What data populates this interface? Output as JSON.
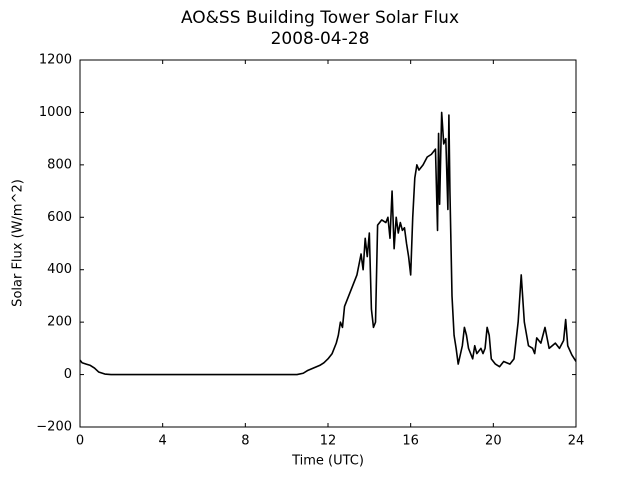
{
  "chart_data": {
    "type": "line",
    "title": "AO&SS Building Tower Solar Flux",
    "subtitle": "2008-04-28",
    "x_label": "Time (UTC)",
    "y_label": "Solar Flux (W/m^2)",
    "xlim": [
      0,
      24
    ],
    "xticks": [
      0,
      4,
      8,
      12,
      16,
      20,
      24
    ],
    "ylim": [
      -200,
      1200
    ],
    "yticks": [
      {
        "value": -200,
        "label": "−200"
      },
      0,
      200,
      400,
      600,
      800,
      1000,
      1200
    ],
    "grid": false,
    "series": [
      {
        "color": "#000000",
        "x": [
          0,
          0.1,
          0.3,
          0.5,
          0.7,
          0.9,
          1.2,
          1.5,
          10.5,
          10.8,
          11,
          11.3,
          11.6,
          11.8,
          12,
          12.2,
          12.4,
          12.5,
          12.6,
          12.7,
          12.8,
          13,
          13.2,
          13.4,
          13.5,
          13.6,
          13.7,
          13.8,
          13.9,
          14.0,
          14.1,
          14.2,
          14.3,
          14.4,
          14.6,
          14.8,
          14.9,
          15.0,
          15.1,
          15.2,
          15.3,
          15.4,
          15.5,
          15.6,
          15.7,
          15.8,
          15.9,
          16.0,
          16.1,
          16.2,
          16.3,
          16.4,
          16.6,
          16.8,
          17.0,
          17.2,
          17.3,
          17.35,
          17.4,
          17.5,
          17.6,
          17.7,
          17.8,
          17.85,
          17.9,
          18.0,
          18.1,
          18.2,
          18.3,
          18.5,
          18.6,
          18.7,
          18.8,
          19.0,
          19.1,
          19.2,
          19.4,
          19.5,
          19.6,
          19.7,
          19.8,
          19.9,
          20.1,
          20.3,
          20.5,
          20.8,
          21,
          21.2,
          21.35,
          21.5,
          21.7,
          21.9,
          22,
          22.1,
          22.3,
          22.5,
          22.7,
          23,
          23.2,
          23.4,
          23.5,
          23.6,
          23.8,
          24
        ],
        "values": [
          55,
          45,
          40,
          35,
          25,
          10,
          2,
          0,
          0,
          5,
          15,
          25,
          35,
          45,
          60,
          80,
          120,
          150,
          200,
          180,
          260,
          300,
          340,
          380,
          420,
          460,
          400,
          520,
          450,
          540,
          250,
          180,
          200,
          570,
          590,
          580,
          600,
          520,
          700,
          480,
          600,
          540,
          580,
          550,
          560,
          500,
          450,
          380,
          600,
          750,
          800,
          780,
          800,
          830,
          840,
          860,
          550,
          920,
          650,
          1000,
          880,
          900,
          630,
          990,
          700,
          300,
          150,
          100,
          40,
          110,
          180,
          150,
          100,
          60,
          110,
          80,
          100,
          80,
          100,
          180,
          150,
          60,
          40,
          30,
          50,
          40,
          60,
          200,
          380,
          200,
          110,
          100,
          80,
          140,
          120,
          180,
          100,
          120,
          100,
          130,
          210,
          110,
          75,
          50
        ]
      }
    ]
  }
}
